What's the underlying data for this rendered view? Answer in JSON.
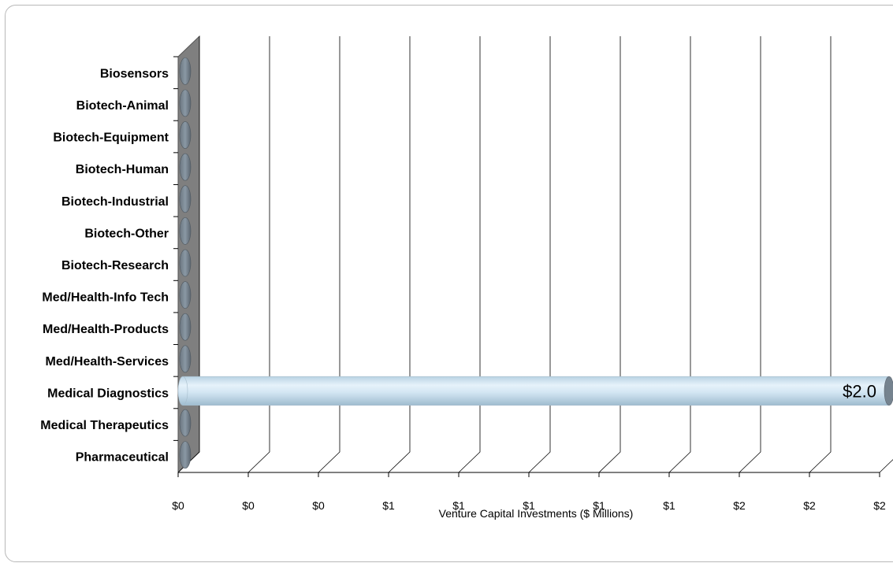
{
  "chart_data": {
    "type": "bar",
    "orientation": "horizontal",
    "style": "3d-cylinder",
    "categories": [
      "Biosensors",
      "Biotech-Animal",
      "Biotech-Equipment",
      "Biotech-Human",
      "Biotech-Industrial",
      "Biotech-Other",
      "Biotech-Research",
      "Med/Health-Info Tech",
      "Med/Health-Products",
      "Med/Health-Services",
      "Medical Diagnostics",
      "Medical Therapeutics",
      "Pharmaceutical"
    ],
    "values": [
      0,
      0,
      0,
      0,
      0,
      0,
      0,
      0,
      0,
      0,
      2.0,
      0,
      0
    ],
    "data_labels": {
      "Medical Diagnostics": "$2.0"
    },
    "xlabel": "Venture Capital Investments ($ Millions)",
    "xlim": [
      0,
      2.0
    ],
    "x_ticks": [
      0,
      0.2,
      0.4,
      0.6,
      0.8,
      1.0,
      1.2,
      1.4,
      1.6,
      1.8,
      2.0
    ],
    "x_tick_labels": [
      "$0",
      "$0",
      "$0",
      "$1",
      "$1",
      "$1",
      "$1",
      "$1",
      "$2",
      "$2",
      "$2"
    ],
    "grid": true,
    "colors": {
      "bar": "#d6e9f5",
      "bar_shade": "#a9c4d6",
      "wall": "#7f7f7f",
      "grid": "#000000"
    }
  }
}
